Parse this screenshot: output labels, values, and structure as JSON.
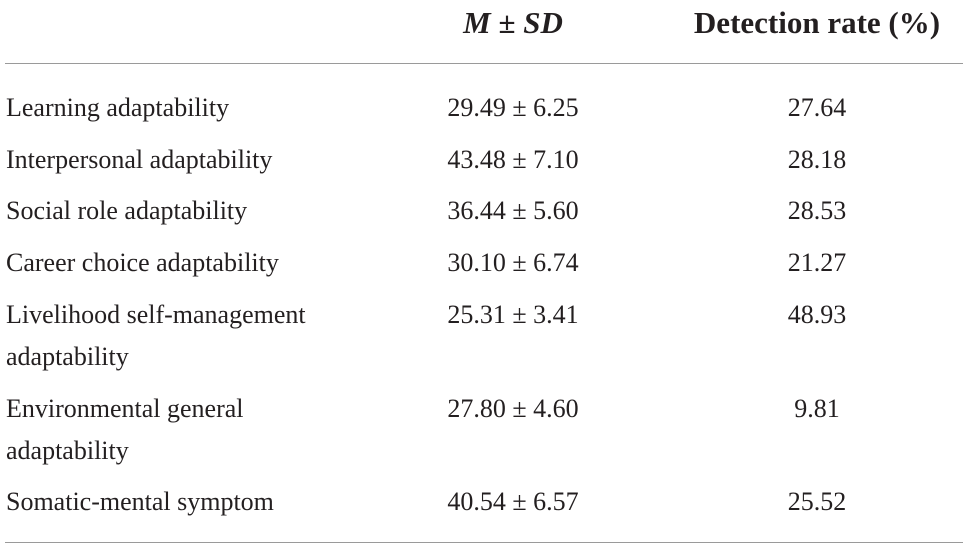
{
  "header": {
    "col_msd_m": "M",
    "col_msd_pm": "±",
    "col_msd_sd": "SD",
    "col_rate": "Detection rate (%)"
  },
  "rows": [
    {
      "label": "Learning adaptability",
      "msd": "29.49 ± 6.25",
      "rate": "27.64"
    },
    {
      "label": "Interpersonal adaptability",
      "msd": "43.48 ± 7.10",
      "rate": "28.18"
    },
    {
      "label": "Social role adaptability",
      "msd": "36.44 ± 5.60",
      "rate": "28.53"
    },
    {
      "label": "Career choice adaptability",
      "msd": "30.10 ± 6.74",
      "rate": "21.27"
    },
    {
      "label_line1": "Livelihood self-management",
      "label_line2": "adaptability",
      "msd": "25.31 ± 3.41",
      "rate": "48.93"
    },
    {
      "label_line1": "Environmental general",
      "label_line2": "adaptability",
      "msd": "27.80 ± 4.60",
      "rate": "9.81"
    },
    {
      "label": "Somatic-mental symptom",
      "msd": "40.54 ± 6.57",
      "rate": "25.52"
    }
  ]
}
